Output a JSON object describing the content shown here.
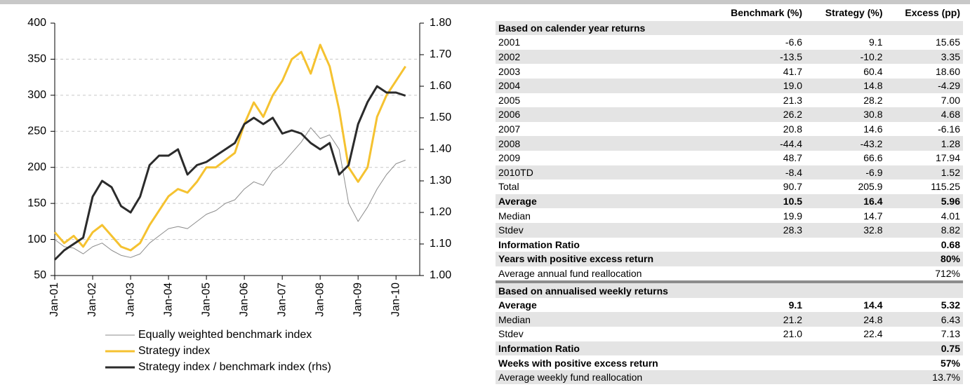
{
  "chart_data": {
    "type": "line",
    "x": [
      "Jan-01",
      "Apr-01",
      "Jul-01",
      "Oct-01",
      "Jan-02",
      "Apr-02",
      "Jul-02",
      "Oct-02",
      "Jan-03",
      "Apr-03",
      "Jul-03",
      "Oct-03",
      "Jan-04",
      "Apr-04",
      "Jul-04",
      "Oct-04",
      "Jan-05",
      "Apr-05",
      "Jul-05",
      "Oct-05",
      "Jan-06",
      "Apr-06",
      "Jul-06",
      "Oct-06",
      "Jan-07",
      "Apr-07",
      "Jul-07",
      "Oct-07",
      "Jan-08",
      "Apr-08",
      "Jul-08",
      "Oct-08",
      "Jan-09",
      "Apr-09",
      "Jul-09",
      "Oct-09",
      "Jan-10",
      "Apr-10"
    ],
    "xticks": [
      "Jan-01",
      "Jan-02",
      "Jan-03",
      "Jan-04",
      "Jan-05",
      "Jan-06",
      "Jan-07",
      "Jan-08",
      "Jan-09",
      "Jan-10"
    ],
    "series": [
      {
        "name": "Equally weighted benchmark index",
        "color": "#8c8c8c",
        "width": 1,
        "values": [
          100,
          90,
          88,
          80,
          90,
          95,
          85,
          78,
          75,
          80,
          95,
          105,
          115,
          118,
          115,
          125,
          135,
          140,
          150,
          155,
          170,
          180,
          175,
          195,
          205,
          220,
          235,
          255,
          240,
          245,
          225,
          150,
          125,
          145,
          170,
          190,
          205,
          210
        ]
      },
      {
        "name": "Strategy index",
        "color": "#f5c230",
        "width": 3,
        "values": [
          110,
          95,
          105,
          90,
          110,
          120,
          105,
          90,
          85,
          95,
          120,
          140,
          160,
          170,
          165,
          180,
          200,
          200,
          210,
          220,
          260,
          290,
          270,
          300,
          320,
          350,
          360,
          330,
          370,
          340,
          280,
          200,
          180,
          200,
          270,
          300,
          320,
          340
        ]
      },
      {
        "name": "Strategy index / benchmark index (rhs)",
        "color": "#2b2b2b",
        "width": 3,
        "axis": "y2",
        "values": [
          1.05,
          1.08,
          1.1,
          1.12,
          1.25,
          1.3,
          1.28,
          1.22,
          1.2,
          1.25,
          1.35,
          1.38,
          1.38,
          1.4,
          1.32,
          1.35,
          1.36,
          1.38,
          1.4,
          1.42,
          1.48,
          1.5,
          1.48,
          1.5,
          1.45,
          1.46,
          1.45,
          1.42,
          1.4,
          1.42,
          1.32,
          1.35,
          1.48,
          1.55,
          1.6,
          1.58,
          1.58,
          1.57
        ]
      }
    ],
    "ylim": [
      50,
      400
    ],
    "yticks": [
      50,
      100,
      150,
      200,
      250,
      300,
      350,
      400
    ],
    "y2lim": [
      1.0,
      1.8
    ],
    "y2ticks": [
      {
        "value": 1.0,
        "label": "1.00"
      },
      {
        "value": 1.1,
        "label": "1.10"
      },
      {
        "value": 1.2,
        "label": "1.20"
      },
      {
        "value": 1.3,
        "label": "1.30"
      },
      {
        "value": 1.4,
        "label": "1.40"
      },
      {
        "value": 1.5,
        "label": "1.50"
      },
      {
        "value": 1.6,
        "label": "1.60"
      },
      {
        "value": 1.7,
        "label": "1.70"
      },
      {
        "value": 1.8,
        "label": "1.80"
      }
    ],
    "grid": true,
    "legend": "bottom"
  },
  "table": {
    "columns": [
      "Benchmark (%)",
      "Strategy (%)",
      "Excess (pp)"
    ],
    "sections": [
      {
        "title": "Based on calender year returns",
        "rows": [
          {
            "cells": [
              "2001",
              "-6.6",
              "9.1",
              "15.65"
            ]
          },
          {
            "cells": [
              "2002",
              "-13.5",
              "-10.2",
              "3.35"
            ]
          },
          {
            "cells": [
              "2003",
              "41.7",
              "60.4",
              "18.60"
            ]
          },
          {
            "cells": [
              "2004",
              "19.0",
              "14.8",
              "-4.29"
            ]
          },
          {
            "cells": [
              "2005",
              "21.3",
              "28.2",
              "7.00"
            ]
          },
          {
            "cells": [
              "2006",
              "26.2",
              "30.8",
              "4.68"
            ]
          },
          {
            "cells": [
              "2007",
              "20.8",
              "14.6",
              "-6.16"
            ]
          },
          {
            "cells": [
              "2008",
              "-44.4",
              "-43.2",
              "1.28"
            ]
          },
          {
            "cells": [
              "2009",
              "48.7",
              "66.6",
              "17.94"
            ]
          },
          {
            "cells": [
              "2010TD",
              "-8.4",
              "-6.9",
              "1.52"
            ]
          },
          {
            "cells": [
              "Total",
              "90.7",
              "205.9",
              "115.25"
            ]
          },
          {
            "cells": [
              "Average",
              "10.5",
              "16.4",
              "5.96"
            ],
            "bold": true
          },
          {
            "cells": [
              "Median",
              "19.9",
              "14.7",
              "4.01"
            ]
          },
          {
            "cells": [
              "Stdev",
              "28.3",
              "32.8",
              "8.82"
            ]
          },
          {
            "cells": [
              "Information Ratio",
              null,
              null,
              "0.68"
            ],
            "bold": true
          },
          {
            "cells": [
              "Years with positive excess return",
              null,
              null,
              "80%"
            ],
            "bold": true
          },
          {
            "cells": [
              "Average annual fund reallocation",
              null,
              null,
              "712%"
            ]
          }
        ]
      },
      {
        "title": "Based on annualised weekly returns",
        "rows": [
          {
            "cells": [
              "Average",
              "9.1",
              "14.4",
              "5.32"
            ],
            "bold": true
          },
          {
            "cells": [
              "Median",
              "21.2",
              "24.8",
              "6.43"
            ]
          },
          {
            "cells": [
              "Stdev",
              "21.0",
              "22.4",
              "7.13"
            ]
          },
          {
            "cells": [
              "Information Ratio",
              null,
              null,
              "0.75"
            ],
            "bold": true
          },
          {
            "cells": [
              "Weeks with positive excess return",
              null,
              null,
              "57%"
            ],
            "bold": true
          },
          {
            "cells": [
              "Average weekly fund reallocation",
              null,
              null,
              "13.7%"
            ]
          }
        ]
      }
    ]
  }
}
